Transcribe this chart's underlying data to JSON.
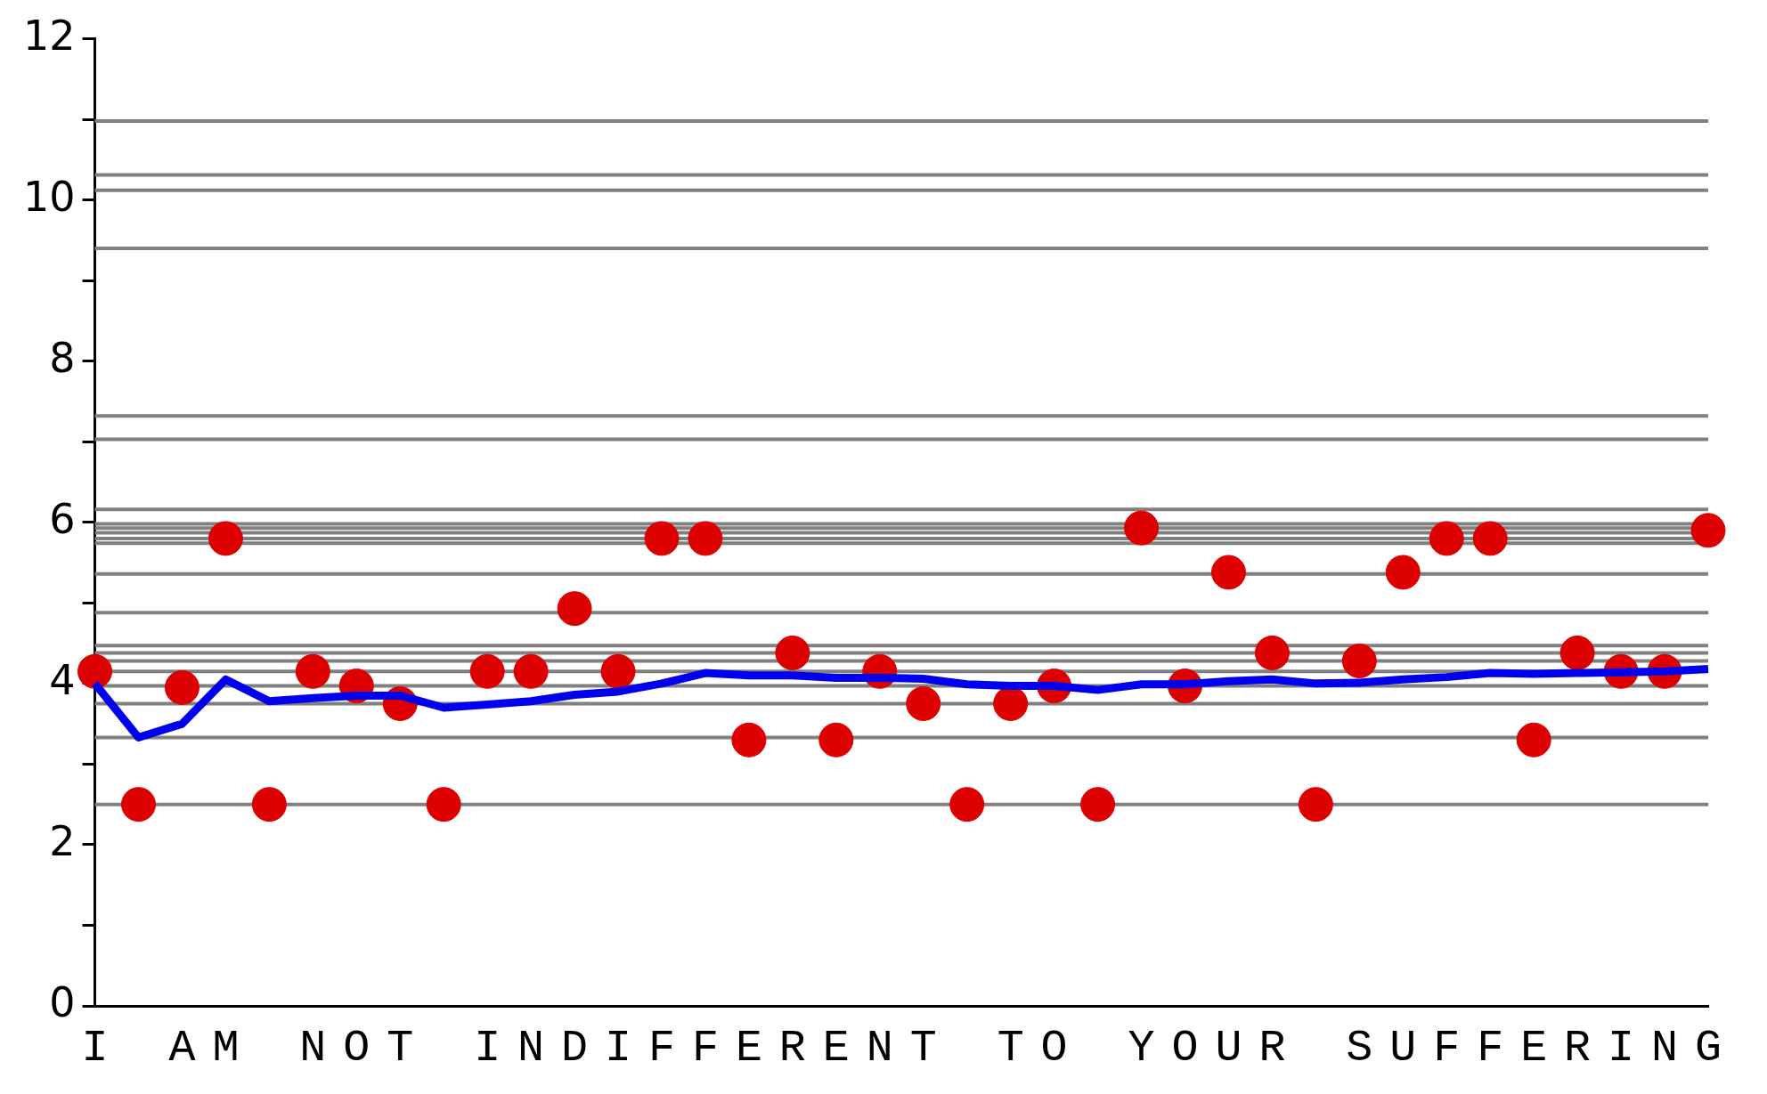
{
  "chart_data": {
    "type": "scatter",
    "categories": [
      "I",
      null,
      "A",
      "M",
      null,
      "N",
      "O",
      "T",
      null,
      "I",
      "N",
      "D",
      "I",
      "F",
      "F",
      "E",
      "R",
      "E",
      "N",
      "T",
      null,
      "T",
      "O",
      null,
      "Y",
      "O",
      "U",
      "R",
      null,
      "S",
      "U",
      "F",
      "F",
      "E",
      "R",
      "I",
      "N",
      "G"
    ],
    "series": [
      {
        "type": "scatter",
        "color": "#dd0000",
        "marker": "circle",
        "values": [
          4.15,
          2.5,
          3.95,
          5.8,
          2.5,
          4.15,
          3.97,
          3.75,
          2.5,
          4.15,
          4.15,
          4.93,
          4.15,
          5.8,
          5.8,
          3.3,
          4.38,
          3.3,
          4.15,
          3.75,
          2.5,
          3.75,
          3.97,
          2.5,
          5.93,
          3.97,
          5.38,
          4.38,
          2.5,
          4.28,
          5.38,
          5.8,
          5.8,
          3.3,
          4.38,
          4.15,
          4.15,
          5.9
        ]
      },
      {
        "type": "line",
        "color": "#0000ee",
        "marker": "none",
        "values": [
          4.0,
          3.33,
          3.5,
          4.05,
          3.78,
          3.82,
          3.85,
          3.85,
          3.7,
          3.74,
          3.78,
          3.86,
          3.9,
          4.0,
          4.13,
          4.1,
          4.1,
          4.07,
          4.07,
          4.06,
          3.99,
          3.97,
          3.97,
          3.92,
          3.99,
          3.99,
          4.03,
          4.05,
          4.0,
          4.01,
          4.05,
          4.08,
          4.13,
          4.12,
          4.13,
          4.14,
          4.15,
          4.18
        ]
      }
    ],
    "ylim": [
      0,
      12
    ],
    "yticks": [
      0,
      {
        "value": 1,
        "label": null
      },
      2,
      {
        "value": 3,
        "label": null
      },
      4,
      {
        "value": 5,
        "label": null
      },
      6,
      {
        "value": 7,
        "label": null
      },
      8,
      {
        "value": 9,
        "label": null
      },
      10,
      {
        "value": 11,
        "label": null
      },
      12
    ],
    "grid": false,
    "legend": false,
    "ref_lines": [
      {
        "axis": "y",
        "value": 10.98,
        "color": "#808080"
      },
      {
        "axis": "y",
        "value": 10.31,
        "color": "#808080"
      },
      {
        "axis": "y",
        "value": 10.12,
        "color": "#808080"
      },
      {
        "axis": "y",
        "value": 9.4,
        "color": "#808080"
      },
      {
        "axis": "y",
        "value": 7.32,
        "color": "#808080"
      },
      {
        "axis": "y",
        "value": 7.03,
        "color": "#808080"
      },
      {
        "axis": "y",
        "value": 6.16,
        "color": "#808080"
      },
      {
        "axis": "y",
        "value": 5.98,
        "color": "#808080"
      },
      {
        "axis": "y",
        "value": 5.93,
        "color": "#808080"
      },
      {
        "axis": "y",
        "value": 5.87,
        "color": "#808080"
      },
      {
        "axis": "y",
        "value": 5.8,
        "color": "#808080"
      },
      {
        "axis": "y",
        "value": 5.74,
        "color": "#808080"
      },
      {
        "axis": "y",
        "value": 5.36,
        "color": "#808080"
      },
      {
        "axis": "y",
        "value": 4.88,
        "color": "#808080"
      },
      {
        "axis": "y",
        "value": 4.47,
        "color": "#808080"
      },
      {
        "axis": "y",
        "value": 4.38,
        "color": "#808080"
      },
      {
        "axis": "y",
        "value": 4.28,
        "color": "#808080"
      },
      {
        "axis": "y",
        "value": 4.15,
        "color": "#808080"
      },
      {
        "axis": "y",
        "value": 3.97,
        "color": "#808080"
      },
      {
        "axis": "y",
        "value": 3.75,
        "color": "#808080"
      },
      {
        "axis": "y",
        "value": 3.33,
        "color": "#808080"
      },
      {
        "axis": "y",
        "value": 2.5,
        "color": "#808080"
      }
    ]
  }
}
